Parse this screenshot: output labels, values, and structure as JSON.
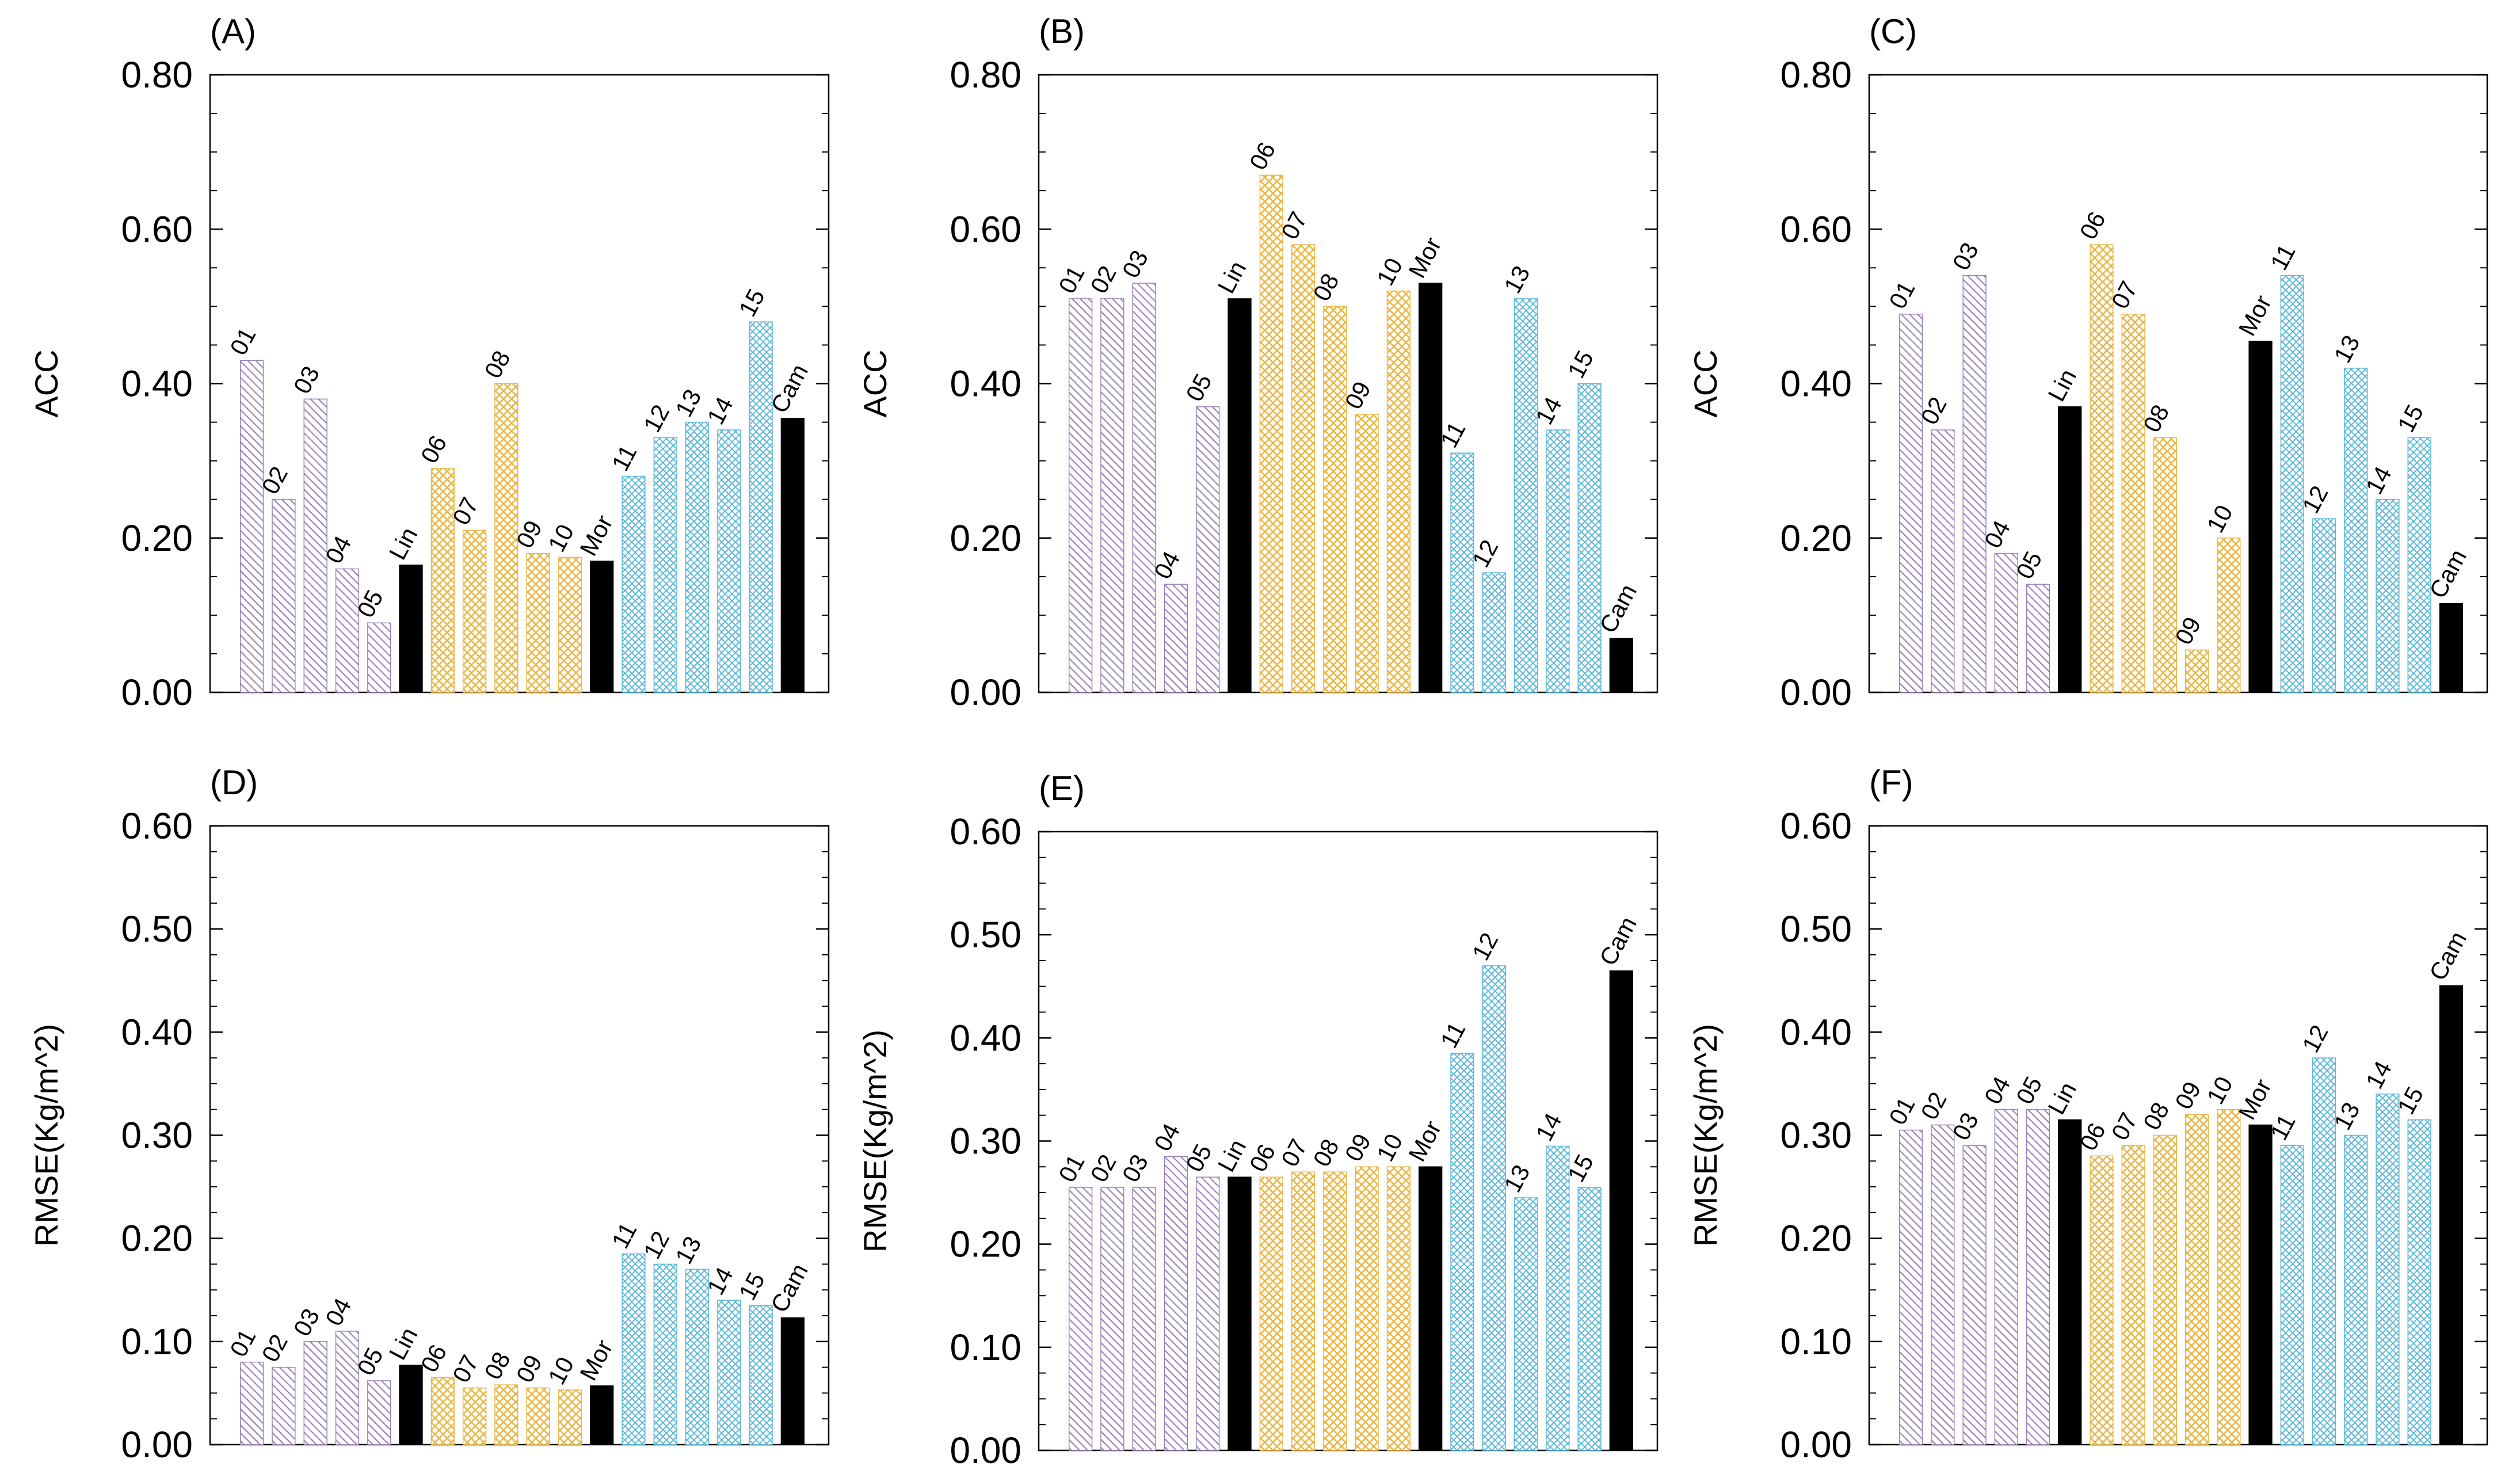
{
  "colors": {
    "group1": "#9b82b8",
    "group2": "#e9b84a",
    "group3": "#5cb8d9",
    "reference": "#000000",
    "axis": "#000000",
    "background": "#ffffff"
  },
  "chart_data": [
    {
      "type": "bar",
      "panel": "(A)",
      "ylabel": "ACC",
      "ylim": [
        0,
        0.8
      ],
      "yticks": [
        "0.00",
        "0.20",
        "0.40",
        "0.60",
        "0.80"
      ],
      "categories": [
        "01",
        "02",
        "03",
        "04",
        "05",
        "Lin",
        "06",
        "07",
        "08",
        "09",
        "10",
        "Mor",
        "11",
        "12",
        "13",
        "14",
        "15",
        "Cam"
      ],
      "values": [
        0.43,
        0.25,
        0.38,
        0.16,
        0.09,
        0.165,
        0.29,
        0.21,
        0.4,
        0.18,
        0.175,
        0.17,
        0.28,
        0.33,
        0.35,
        0.34,
        0.48,
        0.355
      ]
    },
    {
      "type": "bar",
      "panel": "(B)",
      "ylabel": "ACC",
      "ylim": [
        0,
        0.8
      ],
      "yticks": [
        "0.00",
        "0.20",
        "0.40",
        "0.60",
        "0.80"
      ],
      "categories": [
        "01",
        "02",
        "03",
        "04",
        "05",
        "Lin",
        "06",
        "07",
        "08",
        "09",
        "10",
        "Mor",
        "11",
        "12",
        "13",
        "14",
        "15",
        "Cam"
      ],
      "values": [
        0.51,
        0.51,
        0.53,
        0.14,
        0.37,
        0.51,
        0.67,
        0.58,
        0.5,
        0.36,
        0.52,
        0.53,
        0.31,
        0.155,
        0.51,
        0.34,
        0.4,
        0.07
      ]
    },
    {
      "type": "bar",
      "panel": "(C)",
      "ylabel": "ACC",
      "ylim": [
        0,
        0.8
      ],
      "yticks": [
        "0.00",
        "0.20",
        "0.40",
        "0.60",
        "0.80"
      ],
      "categories": [
        "01",
        "02",
        "03",
        "04",
        "05",
        "Lin",
        "06",
        "07",
        "08",
        "09",
        "10",
        "Mor",
        "11",
        "12",
        "13",
        "14",
        "15",
        "Cam"
      ],
      "values": [
        0.49,
        0.34,
        0.54,
        0.18,
        0.14,
        0.37,
        0.58,
        0.49,
        0.33,
        0.055,
        0.2,
        0.455,
        0.54,
        0.225,
        0.42,
        0.25,
        0.33,
        0.115
      ]
    },
    {
      "type": "bar",
      "panel": "(D)",
      "ylabel": "RMSE(Kg/m^2)",
      "ylim": [
        0,
        0.6
      ],
      "yticks": [
        "0.00",
        "0.10",
        "0.20",
        "0.30",
        "0.40",
        "0.50",
        "0.60"
      ],
      "categories": [
        "01",
        "02",
        "03",
        "04",
        "05",
        "Lin",
        "06",
        "07",
        "08",
        "09",
        "10",
        "Mor",
        "11",
        "12",
        "13",
        "14",
        "15",
        "Cam"
      ],
      "values": [
        0.08,
        0.075,
        0.1,
        0.11,
        0.062,
        0.077,
        0.065,
        0.055,
        0.058,
        0.055,
        0.053,
        0.057,
        0.185,
        0.175,
        0.17,
        0.14,
        0.135,
        0.123
      ]
    },
    {
      "type": "bar",
      "panel": "(E)",
      "ylabel": "RMSE(Kg/m^2)",
      "ylim": [
        0,
        0.6
      ],
      "yticks": [
        "0.00",
        "0.10",
        "0.20",
        "0.30",
        "0.40",
        "0.50",
        "0.60"
      ],
      "categories": [
        "01",
        "02",
        "03",
        "04",
        "05",
        "Lin",
        "06",
        "07",
        "08",
        "09",
        "10",
        "Mor",
        "11",
        "12",
        "13",
        "14",
        "15",
        "Cam"
      ],
      "values": [
        0.255,
        0.255,
        0.255,
        0.285,
        0.265,
        0.265,
        0.265,
        0.27,
        0.27,
        0.275,
        0.275,
        0.275,
        0.385,
        0.47,
        0.245,
        0.295,
        0.255,
        0.465
      ]
    },
    {
      "type": "bar",
      "panel": "(F)",
      "ylabel": "RMSE(Kg/m^2)",
      "ylim": [
        0,
        0.6
      ],
      "yticks": [
        "0.00",
        "0.10",
        "0.20",
        "0.30",
        "0.40",
        "0.50",
        "0.60"
      ],
      "categories": [
        "01",
        "02",
        "03",
        "04",
        "05",
        "Lin",
        "06",
        "07",
        "08",
        "09",
        "10",
        "Mor",
        "11",
        "12",
        "13",
        "14",
        "15",
        "Cam"
      ],
      "values": [
        0.305,
        0.31,
        0.29,
        0.325,
        0.325,
        0.315,
        0.28,
        0.29,
        0.3,
        0.32,
        0.325,
        0.31,
        0.29,
        0.375,
        0.3,
        0.34,
        0.315,
        0.445
      ]
    }
  ]
}
